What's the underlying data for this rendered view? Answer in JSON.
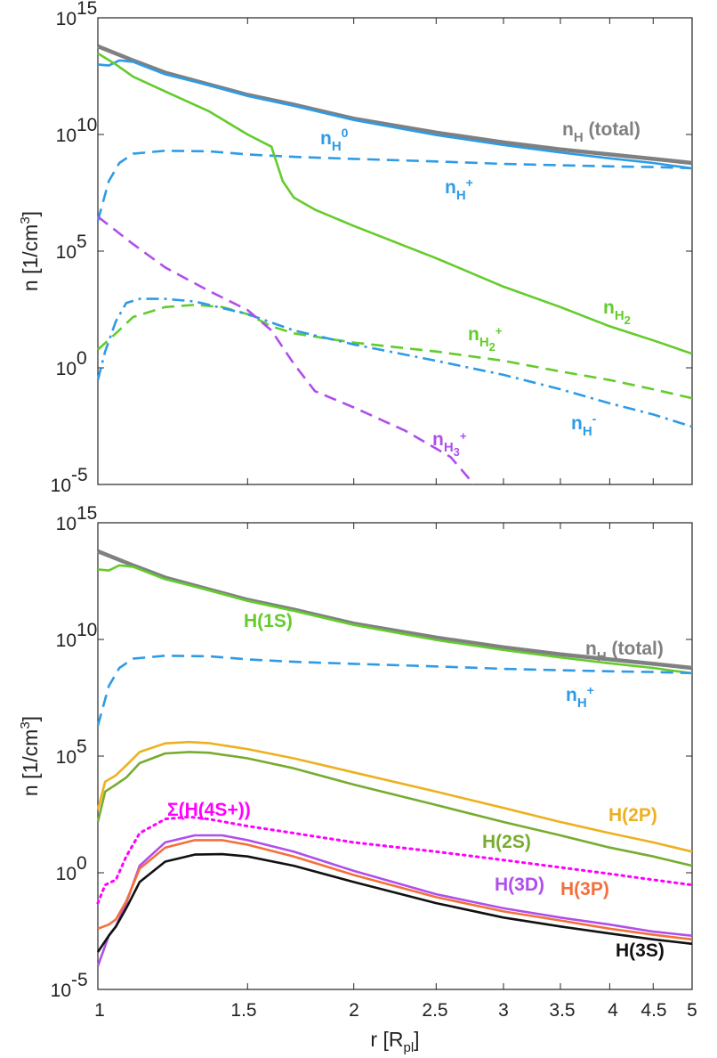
{
  "chart_data": [
    {
      "type": "line",
      "panel": "top",
      "xscale": "log",
      "yscale": "log",
      "xlim": [
        1,
        5
      ],
      "ylim": [
        1e-05,
        1000000000000000.0
      ],
      "xlabel": "",
      "ylabel": "n [1/cm³]",
      "ylabel_base": "n [1/cm",
      "ylabel_sup": "3",
      "ylabel_end": "]",
      "yticks": [
        {
          "value": 1000000000000000.0,
          "base": "10",
          "exp": "15"
        },
        {
          "value": 10000000000.0,
          "base": "10",
          "exp": "10"
        },
        {
          "value": 100000.0,
          "base": "10",
          "exp": "5"
        },
        {
          "value": 1,
          "base": "10",
          "exp": "0"
        },
        {
          "value": 1e-05,
          "base": "10",
          "exp": "-5"
        }
      ],
      "series": [
        {
          "name": "nH (total)",
          "color": "#808080",
          "style": "solid",
          "x": [
            1,
            1.1,
            1.2,
            1.35,
            1.5,
            1.7,
            2,
            2.5,
            3,
            3.5,
            4,
            4.5,
            5
          ],
          "y": [
            60000000000000.0,
            15000000000000.0,
            4500000000000.0,
            1400000000000.0,
            500000000000.0,
            190000000000.0,
            48000000000.0,
            12000000000.0,
            4600000000.0,
            2300000000.0,
            1400000000.0,
            900000000.0,
            600000000.0
          ]
        },
        {
          "name": "nH0",
          "color": "#2E9BE6",
          "style": "solid",
          "x": [
            1,
            1.03,
            1.06,
            1.1,
            1.2,
            1.35,
            1.5,
            1.7,
            2,
            2.5,
            3,
            3.5,
            4,
            4.5,
            5
          ],
          "y": [
            10000000000000.0,
            9000000000000.0,
            15000000000000.0,
            13000000000000.0,
            3800000000000.0,
            1300000000000.0,
            450000000000.0,
            170000000000.0,
            42000000000.0,
            9500000000.0,
            3500000000.0,
            1700000000.0,
            950000000.0,
            600000000.0,
            350000000.0
          ]
        },
        {
          "name": "nH+",
          "color": "#2E9BE6",
          "style": "dashed",
          "x": [
            1,
            1.03,
            1.06,
            1.1,
            1.2,
            1.35,
            1.5,
            1.7,
            2,
            2.5,
            3,
            3.5,
            4,
            4.5,
            5
          ],
          "y": [
            2000000.0,
            100000000.0,
            600000000.0,
            1500000000.0,
            2000000000.0,
            1900000000.0,
            1400000000.0,
            1100000000.0,
            900000000.0,
            700000000.0,
            550000000.0,
            480000000.0,
            430000000.0,
            400000000.0,
            360000000.0
          ]
        },
        {
          "name": "nH2",
          "color": "#63CC2C",
          "style": "solid",
          "x": [
            1,
            1.05,
            1.1,
            1.2,
            1.35,
            1.5,
            1.6,
            1.65,
            1.7,
            1.8,
            2,
            2.5,
            3,
            3.5,
            4,
            4.5,
            5
          ],
          "y": [
            30000000000000.0,
            10000000000000.0,
            3000000000000.0,
            700000000000.0,
            100000000000.0,
            10000000000.0,
            3000000000.0,
            100000000.0,
            20000000.0,
            6000000.0,
            1200000.0,
            50000.0,
            3000.0,
            400,
            60,
            15,
            4
          ]
        },
        {
          "name": "nH2+",
          "color": "#63CC2C",
          "style": "dashed",
          "x": [
            1,
            1.05,
            1.1,
            1.2,
            1.3,
            1.4,
            1.5,
            1.6,
            1.7,
            2,
            2.5,
            3,
            3.5,
            4,
            4.5,
            5
          ],
          "y": [
            6,
            30,
            150,
            400,
            500,
            400,
            200,
            60,
            30,
            12,
            5,
            2,
            0.7,
            0.3,
            0.12,
            0.05
          ]
        },
        {
          "name": "nH-",
          "color": "#2E9BE6",
          "style": "dashdot",
          "x": [
            1,
            1.02,
            1.05,
            1.08,
            1.12,
            1.2,
            1.3,
            1.5,
            1.7,
            2,
            2.5,
            3,
            3.5,
            4,
            4.5,
            5
          ],
          "y": [
            0.3,
            5,
            100,
            600,
            900,
            900,
            700,
            200,
            40,
            10,
            2,
            0.5,
            0.12,
            0.03,
            0.01,
            0.003
          ]
        },
        {
          "name": "nH3+",
          "color": "#B04EEA",
          "style": "dashed",
          "x": [
            1,
            1.1,
            1.2,
            1.35,
            1.5,
            1.6,
            1.7,
            1.8,
            2,
            2.3,
            2.6,
            2.77
          ],
          "y": [
            3000000.0,
            200000.0,
            20000.0,
            2000.0,
            300,
            40,
            1.5,
            0.1,
            0.02,
            0.002,
            0.00015,
            1e-05
          ]
        }
      ],
      "labels": {
        "nh_total": {
          "main": "n",
          "sub": "H",
          "tail": " (total)"
        },
        "nh0": {
          "main": "n",
          "sub": "H",
          "sup": "0"
        },
        "nhplus": {
          "main": "n",
          "sub": "H",
          "sup": "+"
        },
        "nh2": {
          "main": "n",
          "sub": "H",
          "subsub": "2"
        },
        "nh2plus": {
          "main": "n",
          "sub": "H",
          "subsub": "2",
          "sup": "+"
        },
        "nhminus": {
          "main": "n",
          "sub": "H",
          "sup": "-"
        },
        "nh3plus": {
          "main": "n",
          "sub": "H",
          "subsub": "3",
          "sup": "+"
        }
      }
    },
    {
      "type": "line",
      "panel": "bottom",
      "xscale": "log",
      "yscale": "log",
      "xlim": [
        1,
        5
      ],
      "ylim": [
        1e-05,
        1000000000000000.0
      ],
      "xlabel": "r [Rpl]",
      "xlabel_main": "r [R",
      "xlabel_sub": "pl",
      "xlabel_end": "]",
      "ylabel": "n [1/cm³]",
      "xticks": [
        {
          "value": 1,
          "label": "1"
        },
        {
          "value": 1.5,
          "label": "1.5"
        },
        {
          "value": 2,
          "label": "2"
        },
        {
          "value": 2.5,
          "label": "2.5"
        },
        {
          "value": 3,
          "label": "3"
        },
        {
          "value": 3.5,
          "label": "3.5"
        },
        {
          "value": 4,
          "label": "4"
        },
        {
          "value": 4.5,
          "label": "4.5"
        },
        {
          "value": 5,
          "label": "5"
        }
      ],
      "series": [
        {
          "name": "nH (total)",
          "color": "#808080",
          "style": "solid",
          "x": [
            1,
            1.1,
            1.2,
            1.35,
            1.5,
            1.7,
            2,
            2.5,
            3,
            3.5,
            4,
            4.5,
            5
          ],
          "y": [
            60000000000000.0,
            15000000000000.0,
            4500000000000.0,
            1400000000000.0,
            500000000000.0,
            190000000000.0,
            48000000000.0,
            12000000000.0,
            4600000000.0,
            2300000000.0,
            1400000000.0,
            900000000.0,
            600000000.0
          ]
        },
        {
          "name": "H(1S)",
          "color": "#63CC2C",
          "style": "solid",
          "x": [
            1,
            1.03,
            1.06,
            1.1,
            1.2,
            1.35,
            1.5,
            1.7,
            2,
            2.5,
            3,
            3.5,
            4,
            4.5,
            5
          ],
          "y": [
            10000000000000.0,
            9000000000000.0,
            15000000000000.0,
            13000000000000.0,
            3800000000000.0,
            1300000000000.0,
            450000000000.0,
            170000000000.0,
            42000000000.0,
            9500000000.0,
            3500000000.0,
            1700000000.0,
            950000000.0,
            600000000.0,
            350000000.0
          ]
        },
        {
          "name": "nH+",
          "color": "#2E9BE6",
          "style": "dashed",
          "x": [
            1,
            1.03,
            1.06,
            1.1,
            1.2,
            1.35,
            1.5,
            1.7,
            2,
            2.5,
            3,
            3.5,
            4,
            4.5,
            5
          ],
          "y": [
            2000000.0,
            100000000.0,
            600000000.0,
            1500000000.0,
            2000000000.0,
            1900000000.0,
            1400000000.0,
            1100000000.0,
            900000000.0,
            700000000.0,
            550000000.0,
            480000000.0,
            430000000.0,
            400000000.0,
            360000000.0
          ]
        },
        {
          "name": "H(2P)",
          "color": "#EDB120",
          "style": "solid",
          "x": [
            1,
            1.02,
            1.05,
            1.08,
            1.12,
            1.2,
            1.28,
            1.35,
            1.5,
            1.7,
            2,
            2.5,
            3,
            3.5,
            4,
            4.5,
            5
          ],
          "y": [
            500,
            8000,
            15000.0,
            40000.0,
            150000.0,
            350000.0,
            400000.0,
            360000.0,
            200000.0,
            80000.0,
            20000.0,
            3000,
            600,
            150,
            50,
            20,
            8
          ]
        },
        {
          "name": "H(2S)",
          "color": "#77AC30",
          "style": "solid",
          "x": [
            1,
            1.02,
            1.05,
            1.08,
            1.12,
            1.2,
            1.28,
            1.35,
            1.5,
            1.7,
            2,
            2.5,
            3,
            3.5,
            4,
            4.5,
            5
          ],
          "y": [
            150,
            3000,
            6000,
            12000.0,
            50000.0,
            130000.0,
            150000.0,
            140000.0,
            80000.0,
            30000.0,
            6000,
            800,
            150,
            40,
            12,
            5,
            2
          ]
        },
        {
          "name": "Σ(H(4S+))",
          "color": "#FF00FF",
          "style": "dotted",
          "x": [
            1,
            1.02,
            1.05,
            1.08,
            1.12,
            1.2,
            1.28,
            1.35,
            1.5,
            1.7,
            2,
            2.5,
            3,
            3.5,
            4,
            4.5,
            5
          ],
          "y": [
            0.05,
            0.3,
            0.5,
            5,
            50,
            200,
            250,
            200,
            100,
            50,
            20,
            8,
            3.5,
            1.7,
            0.9,
            0.5,
            0.3
          ]
        },
        {
          "name": "H(3D)",
          "color": "#B04EEA",
          "style": "solid",
          "x": [
            1,
            1.03,
            1.05,
            1.08,
            1.12,
            1.2,
            1.3,
            1.4,
            1.5,
            1.7,
            2,
            2.5,
            3,
            3.5,
            4,
            4.5,
            5
          ],
          "y": [
            0.0001,
            0.002,
            0.005,
            0.05,
            2,
            20,
            40,
            40,
            25,
            8,
            1.2,
            0.12,
            0.03,
            0.012,
            0.006,
            0.003,
            0.002
          ]
        },
        {
          "name": "H(3P)",
          "color": "#F3703B",
          "style": "solid",
          "x": [
            1,
            1.03,
            1.05,
            1.08,
            1.12,
            1.2,
            1.3,
            1.4,
            1.5,
            1.7,
            2,
            2.5,
            3,
            3.5,
            4,
            4.5,
            5
          ],
          "y": [
            0.004,
            0.006,
            0.01,
            0.06,
            1.5,
            12,
            25,
            25,
            16,
            5,
            0.8,
            0.09,
            0.022,
            0.009,
            0.004,
            0.0022,
            0.0014
          ]
        },
        {
          "name": "H(3S)",
          "color": "#111111",
          "style": "solid",
          "x": [
            1,
            1.03,
            1.05,
            1.08,
            1.12,
            1.2,
            1.3,
            1.4,
            1.5,
            1.7,
            2,
            2.5,
            3,
            3.5,
            4,
            4.5,
            5
          ],
          "y": [
            0.0004,
            0.002,
            0.005,
            0.03,
            0.4,
            3,
            6,
            6.3,
            5,
            2,
            0.4,
            0.05,
            0.012,
            0.005,
            0.0025,
            0.0014,
            0.0009
          ]
        }
      ],
      "labels": {
        "h1s": "H(1S)",
        "nh_total": {
          "main": "n",
          "sub": "H",
          "tail": " (total)"
        },
        "nhplus": {
          "main": "n",
          "sub": "H",
          "sup": "+"
        },
        "sigma": "Σ(H(4S+))",
        "h2p": "H(2P)",
        "h2s": "H(2S)",
        "h3d": "H(3D)",
        "h3p": "H(3P)",
        "h3s": "H(3S)"
      }
    }
  ]
}
